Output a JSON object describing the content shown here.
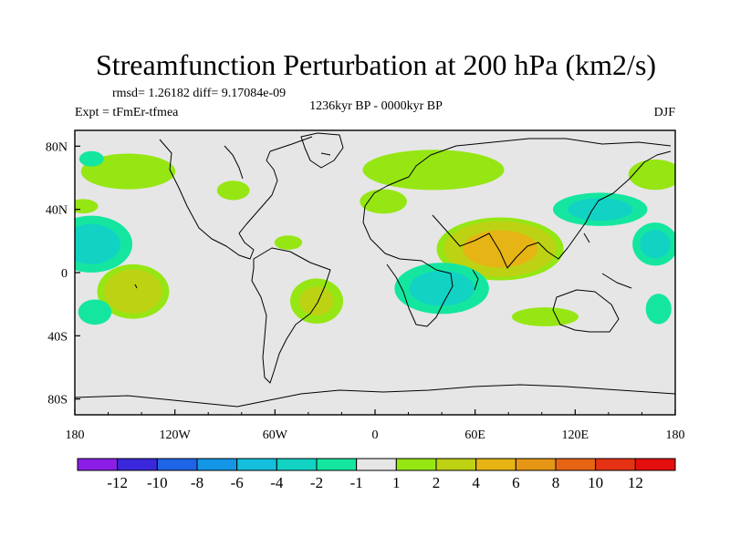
{
  "chart_data": {
    "type": "heatmap",
    "title": "Streamfunction Perturbation at 200 hPa (km2/s)",
    "stats": "rmsd= 1.26182 diff= 9.17084e-09",
    "period": "1236kyr BP - 0000kyr BP",
    "experiment": "Expt = tFmEr-tfmea",
    "season": "DJF",
    "xlim": [
      -180,
      180
    ],
    "ylim": [
      -90,
      90
    ],
    "x_ticks": [
      {
        "value": -180,
        "label": "180"
      },
      {
        "value": -120,
        "label": "120W"
      },
      {
        "value": -60,
        "label": "60W"
      },
      {
        "value": 0,
        "label": "0"
      },
      {
        "value": 60,
        "label": "60E"
      },
      {
        "value": 120,
        "label": "120E"
      },
      {
        "value": 180,
        "label": "180"
      }
    ],
    "y_ticks": [
      {
        "value": 80,
        "label": "80N"
      },
      {
        "value": 40,
        "label": "40N"
      },
      {
        "value": 0,
        "label": "0"
      },
      {
        "value": -40,
        "label": "40S"
      },
      {
        "value": -80,
        "label": "80S"
      }
    ],
    "colorbar": {
      "labels": [
        "-12",
        "-10",
        "-8",
        "-6",
        "-4",
        "-2",
        "-1",
        "1",
        "2",
        "4",
        "6",
        "8",
        "10",
        "12"
      ],
      "colors": [
        "#8a1ee6",
        "#3c28dc",
        "#1e64e6",
        "#1496e6",
        "#14bedc",
        "#12d2c4",
        "#14e6a0",
        "#e6e6e6",
        "#96e614",
        "#bed214",
        "#e6b414",
        "#e69614",
        "#e66414",
        "#e63214",
        "#e60f0f"
      ]
    },
    "regions": [
      {
        "name": "tropical-asia-positive",
        "lon": 75,
        "lat": 15,
        "rlon": 42,
        "rlat": 22,
        "peak": 5.2
      },
      {
        "name": "north-atlantic-europe-positive",
        "lon": 35,
        "lat": 65,
        "rlon": 60,
        "rlat": 18,
        "peak": 1.6
      },
      {
        "name": "mid-atlantic-positive-lobe",
        "lon": 5,
        "lat": 45,
        "rlon": 22,
        "rlat": 12,
        "peak": 1.3
      },
      {
        "name": "north-pacific-positive",
        "lon": -148,
        "lat": 64,
        "rlon": 40,
        "rlat": 16,
        "peak": 1.6
      },
      {
        "name": "north-america-positive",
        "lon": -85,
        "lat": 52,
        "rlon": 16,
        "rlat": 10,
        "peak": 1.2
      },
      {
        "name": "east-pacific-positive-small",
        "lon": -175,
        "lat": 42,
        "rlon": 14,
        "rlat": 7,
        "peak": 1.3
      },
      {
        "name": "west-atlantic-positive",
        "lon": -52,
        "lat": 19,
        "rlon": 13,
        "rlat": 7,
        "peak": 1.3
      },
      {
        "name": "far-east-north-positive",
        "lon": 168,
        "lat": 62,
        "rlon": 25,
        "rlat": 15,
        "peak": 1.3
      },
      {
        "name": "south-pacific-positive",
        "lon": -145,
        "lat": -12,
        "rlon": 25,
        "rlat": 20,
        "peak": 3.5
      },
      {
        "name": "south-america-positive",
        "lon": -35,
        "lat": -18,
        "rlon": 20,
        "rlat": 18,
        "peak": 2.3
      },
      {
        "name": "australia-southern-positive",
        "lon": 102,
        "lat": -28,
        "rlon": 30,
        "rlat": 9,
        "peak": 1.4
      },
      {
        "name": "north-pacific-negative",
        "lon": 135,
        "lat": 40,
        "rlon": 35,
        "rlat": 13,
        "peak": -2.5
      },
      {
        "name": "central-pacific-negative",
        "lon": -170,
        "lat": 18,
        "rlon": 30,
        "rlat": 22,
        "peak": -2.6
      },
      {
        "name": "east-pacific-negative",
        "lon": 168,
        "lat": 18,
        "rlon": 17,
        "rlat": 17,
        "peak": -2.4
      },
      {
        "name": "africa-indian-negative",
        "lon": 40,
        "lat": -10,
        "rlon": 35,
        "rlat": 20,
        "peak": -2.5
      },
      {
        "name": "southern-pacific-negative",
        "lon": -168,
        "lat": -25,
        "rlon": 15,
        "rlat": 12,
        "peak": -1.4
      },
      {
        "name": "far-east-south-negative",
        "lon": 170,
        "lat": -23,
        "rlon": 12,
        "rlat": 15,
        "peak": -1.3
      },
      {
        "name": "north-atlantic-negative",
        "lon": -170,
        "lat": 72,
        "rlon": 12,
        "rlat": 8,
        "peak": -1.2
      }
    ]
  }
}
